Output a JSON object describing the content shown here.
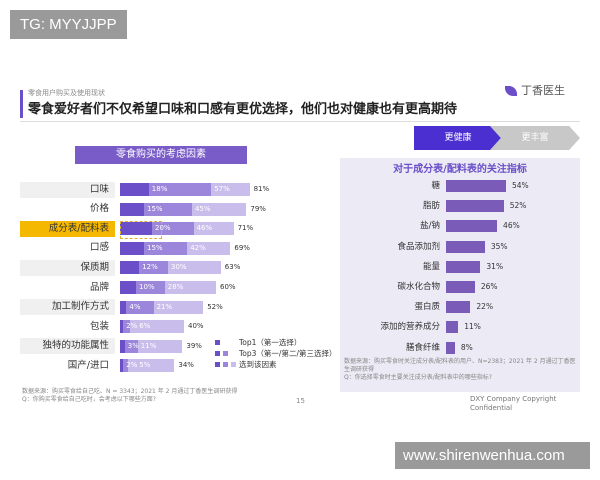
{
  "overlay_tag": "TG: MYYJJPP",
  "footer_tag": "www.shirenwenhua.com",
  "header": {
    "subtitle": "零食用户购买及使用现状",
    "title": "零食爱好者们不仅希望口味和口感有更优选择，他们也对健康也有更高期待",
    "logo": "丁香医生"
  },
  "tabs": [
    {
      "label": "更健康",
      "active": true
    },
    {
      "label": "更丰富",
      "active": false
    }
  ],
  "colors": {
    "top1": "#6a4fc8",
    "top3": "#9b86dc",
    "selected": "#c9bdec",
    "highlight": "#f5b800",
    "tab_active": "#4b2fd0",
    "right_bar": "#7a5cb8"
  },
  "chart_data": [
    {
      "type": "bar",
      "orientation": "horizontal",
      "stacked": true,
      "title": "零食购买的考虑因素",
      "categories": [
        "口味",
        "价格",
        "成分表/配料表",
        "口感",
        "保质期",
        "品牌",
        "加工制作方式",
        "包装",
        "独特的功能属性",
        "国产/进口"
      ],
      "highlighted": "成分表/配料表",
      "series": [
        {
          "name": "Top1（第一选择）",
          "values": [
            18,
            15,
            20,
            15,
            12,
            10,
            4,
            2,
            3,
            2
          ]
        },
        {
          "name": "Top3（第一/第二/第三选择）",
          "values": [
            57,
            45,
            46,
            42,
            30,
            28,
            21,
            6,
            11,
            5
          ]
        },
        {
          "name": "选到该因素",
          "values": [
            81,
            79,
            71,
            69,
            63,
            60,
            52,
            40,
            39,
            34
          ]
        }
      ],
      "unit": "%",
      "note": [
        "数据来源：购买零食给自己吃、N = 3343；2021 年 2 月通过丁香医生调研获得",
        "Q：你购买零食给自己吃时，会考虑以下哪些方面?"
      ]
    },
    {
      "type": "bar",
      "orientation": "horizontal",
      "title": "对于成分表/配料表的关注指标",
      "categories": [
        "糖",
        "脂肪",
        "盐/钠",
        "食品添加剂",
        "能量",
        "碳水化合物",
        "蛋白质",
        "添加的营养成分",
        "膳食纤维"
      ],
      "values": [
        54,
        52,
        46,
        35,
        31,
        26,
        22,
        11,
        8
      ],
      "unit": "%",
      "note": [
        "数据来源：购买零食时关注成分表/配料表的用户、N=2383；2021 年 2 月通过丁香医生调研获得",
        "Q：你选择零食时主要关注成分表/配料表中的哪些指标?"
      ]
    }
  ],
  "page_number": "15",
  "copyright": "DXY Company Copyright Confidential"
}
